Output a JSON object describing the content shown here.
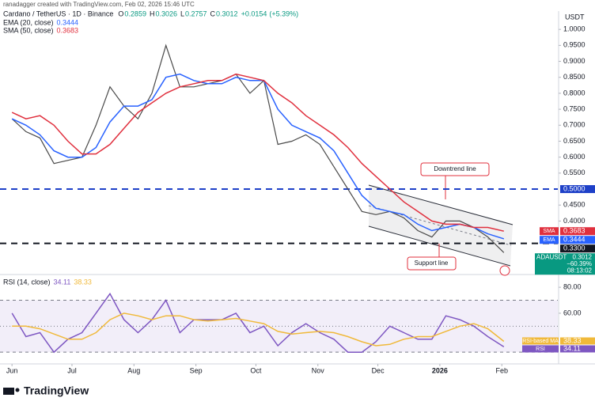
{
  "header": "ranadagger created with TradingView.com, Feb 02, 2026 15:46 UTC",
  "footer": "TradingView",
  "chart_data": [
    {
      "type": "line",
      "title": "Cardano / TetherUS · 1D · Binance",
      "ohlc_labels": [
        "O",
        "H",
        "L",
        "C"
      ],
      "ohlc": [
        0.2859,
        0.3026,
        0.2757,
        0.3012
      ],
      "change": {
        "value": 0.0154,
        "label": "+0.0154"
      },
      "change_pct": {
        "value": 5.39,
        "label": "(+5.39%)"
      },
      "axis_unit": "USDT",
      "x": [
        0,
        7,
        14,
        21,
        28,
        35,
        42,
        49,
        56,
        63,
        70,
        77,
        84,
        91,
        98,
        105,
        112,
        119,
        126,
        133,
        140,
        147,
        154,
        161,
        168,
        175,
        182,
        189,
        196,
        203,
        210,
        217,
        224,
        231,
        238,
        246
      ],
      "xlim": [
        -6,
        273
      ],
      "ylim": [
        0.24,
        1.045
      ],
      "yticks": [
        {
          "value": 1.0,
          "label": "1.0000"
        },
        {
          "value": 0.95,
          "label": "0.9500"
        },
        {
          "value": 0.9,
          "label": "0.9000"
        },
        {
          "value": 0.85,
          "label": "0.8500"
        },
        {
          "value": 0.8,
          "label": "0.8000"
        },
        {
          "value": 0.75,
          "label": "0.7500"
        },
        {
          "value": 0.7,
          "label": "0.7000"
        },
        {
          "value": 0.65,
          "label": "0.6500"
        },
        {
          "value": 0.6,
          "label": "0.6000"
        },
        {
          "value": 0.55,
          "label": "0.5500"
        },
        {
          "value": 0.45,
          "label": "0.4500"
        },
        {
          "value": 0.4,
          "label": "0.4000"
        }
      ],
      "series": [
        {
          "name": "ADAUSDT",
          "color": "#4a4a4a",
          "values": [
            0.72,
            0.68,
            0.66,
            0.58,
            0.59,
            0.6,
            0.7,
            0.82,
            0.76,
            0.72,
            0.8,
            0.95,
            0.82,
            0.82,
            0.83,
            0.84,
            0.86,
            0.8,
            0.84,
            0.64,
            0.65,
            0.67,
            0.64,
            0.57,
            0.5,
            0.43,
            0.42,
            0.43,
            0.41,
            0.37,
            0.35,
            0.4,
            0.4,
            0.38,
            0.35,
            0.3012
          ],
          "change_total": {
            "value": -60.39,
            "label": "−60.39%"
          },
          "countdown": "08:13:02"
        },
        {
          "name": "EMA (20, close)",
          "tag": "EMA",
          "color": "#2962ff",
          "values": [
            0.72,
            0.7,
            0.67,
            0.62,
            0.6,
            0.6,
            0.63,
            0.71,
            0.76,
            0.76,
            0.78,
            0.85,
            0.86,
            0.84,
            0.83,
            0.83,
            0.85,
            0.84,
            0.84,
            0.75,
            0.7,
            0.68,
            0.66,
            0.62,
            0.55,
            0.48,
            0.44,
            0.43,
            0.42,
            0.39,
            0.37,
            0.38,
            0.39,
            0.38,
            0.36,
            0.3444
          ]
        },
        {
          "name": "SMA (50, close)",
          "tag": "SMA",
          "color": "#e0303e",
          "values": [
            0.74,
            0.72,
            0.73,
            0.7,
            0.65,
            0.61,
            0.61,
            0.64,
            0.69,
            0.74,
            0.77,
            0.8,
            0.82,
            0.83,
            0.84,
            0.84,
            0.86,
            0.85,
            0.84,
            0.8,
            0.77,
            0.73,
            0.7,
            0.67,
            0.63,
            0.58,
            0.54,
            0.5,
            0.46,
            0.43,
            0.4,
            0.39,
            0.39,
            0.38,
            0.38,
            0.3683
          ]
        }
      ],
      "hlines": [
        {
          "value": 0.5,
          "label": "0.5000",
          "color": "#1e40c8"
        },
        {
          "value": 0.33,
          "label": "0.3300",
          "color": "#131722"
        }
      ],
      "annotations": [
        "Downtrend line",
        "Support line"
      ]
    },
    {
      "type": "line",
      "title": "RSI (14, close)",
      "x": [
        0,
        7,
        14,
        21,
        28,
        35,
        42,
        49,
        56,
        63,
        70,
        77,
        84,
        91,
        98,
        105,
        112,
        119,
        126,
        133,
        140,
        147,
        154,
        161,
        168,
        175,
        182,
        189,
        196,
        203,
        210,
        217,
        224,
        231,
        238,
        246
      ],
      "xlim": [
        -6,
        273
      ],
      "xticks": [
        {
          "value": 0,
          "label": "Jun"
        },
        {
          "value": 30,
          "label": "Jul"
        },
        {
          "value": 61,
          "label": "Aug"
        },
        {
          "value": 92,
          "label": "Sep"
        },
        {
          "value": 122,
          "label": "Oct"
        },
        {
          "value": 153,
          "label": "Nov"
        },
        {
          "value": 183,
          "label": "Dec"
        },
        {
          "value": 214,
          "label": "2026"
        },
        {
          "value": 245,
          "label": "Feb"
        }
      ],
      "ylim": [
        24,
        88
      ],
      "yticks": [
        {
          "value": 80,
          "label": "80.00"
        },
        {
          "value": 60,
          "label": "60.00"
        }
      ],
      "levels": [
        70,
        50,
        30
      ],
      "series": [
        {
          "name": "RSI",
          "color": "#7e57c2",
          "values": [
            60,
            42,
            45,
            30,
            40,
            45,
            60,
            75,
            55,
            45,
            55,
            70,
            45,
            55,
            55,
            55,
            60,
            45,
            50,
            35,
            45,
            52,
            45,
            40,
            30,
            30,
            38,
            50,
            45,
            40,
            40,
            58,
            55,
            50,
            42,
            34.11
          ]
        },
        {
          "name": "RSI-based MA",
          "color": "#f0b93a",
          "values": [
            50,
            50,
            48,
            44,
            40,
            40,
            45,
            55,
            60,
            58,
            55,
            58,
            58,
            55,
            54,
            55,
            56,
            54,
            52,
            46,
            44,
            45,
            46,
            45,
            42,
            38,
            35,
            36,
            40,
            42,
            42,
            46,
            50,
            52,
            48,
            38.33
          ]
        }
      ]
    }
  ]
}
